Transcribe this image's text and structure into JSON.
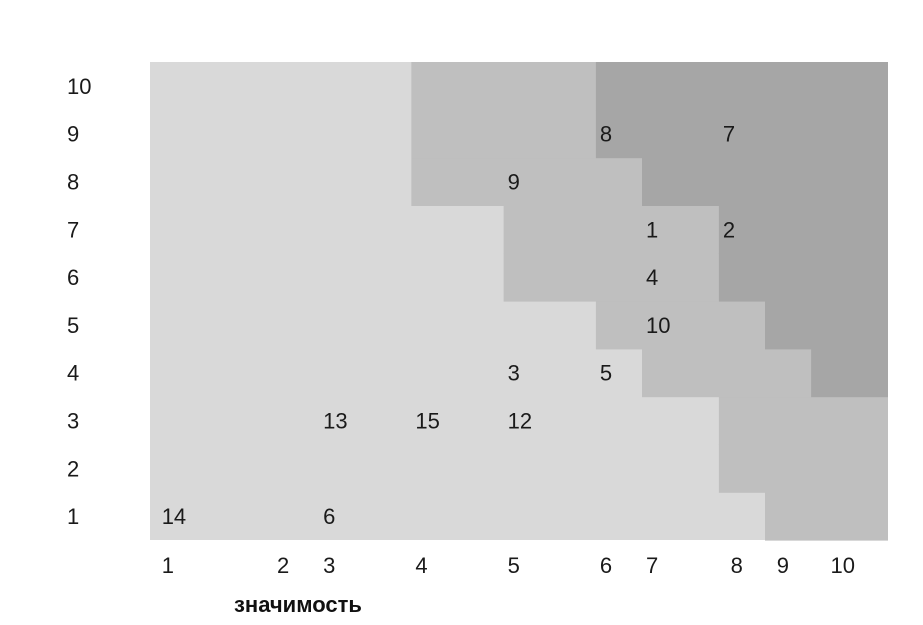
{
  "chart_data": {
    "type": "heatmap",
    "title": "",
    "xlabel": "значимость",
    "ylabel": "",
    "x_ticks": [
      {
        "label": "1",
        "value": 1.1
      },
      {
        "label": "2",
        "value": 2.6
      },
      {
        "label": "3",
        "value": 3.2
      },
      {
        "label": "4",
        "value": 4.4
      },
      {
        "label": "5",
        "value": 5.6
      },
      {
        "label": "6",
        "value": 6.8
      },
      {
        "label": "7",
        "value": 7.4
      },
      {
        "label": "8",
        "value": 8.5
      },
      {
        "label": "9",
        "value": 9.1
      },
      {
        "label": "10",
        "value": 9.8
      }
    ],
    "y_ticks": [
      "1",
      "2",
      "3",
      "4",
      "5",
      "6",
      "7",
      "8",
      "9",
      "10"
    ],
    "xlim": [
      1,
      10.6
    ],
    "ylim": [
      0.5,
      10.5
    ],
    "zones": [
      {
        "level": 1,
        "color": "#d9d9d9",
        "x_from": 1
      },
      {
        "level": 2,
        "color": "#bfbfbf",
        "x_from_by_row": {
          "1": 9.0,
          "2": 8.4,
          "3": 8.4,
          "4": 7.4,
          "5": 6.8,
          "6": 5.6,
          "7": 5.6,
          "8": 4.4,
          "9": 4.4,
          "10": 4.4
        }
      },
      {
        "level": 3,
        "color": "#a6a6a6",
        "x_from_by_row": {
          "4": 9.6,
          "5": 9.0,
          "6": 8.4,
          "7": 8.4,
          "8": 7.4,
          "9": 6.8,
          "10": 6.8
        }
      }
    ],
    "points": [
      {
        "label": "14",
        "x": 1.1,
        "y": 1
      },
      {
        "label": "6",
        "x": 3.2,
        "y": 1
      },
      {
        "label": "13",
        "x": 3.2,
        "y": 3
      },
      {
        "label": "15",
        "x": 4.4,
        "y": 3
      },
      {
        "label": "12",
        "x": 5.6,
        "y": 3
      },
      {
        "label": "3",
        "x": 5.6,
        "y": 4
      },
      {
        "label": "5",
        "x": 6.8,
        "y": 4
      },
      {
        "label": "10",
        "x": 7.4,
        "y": 5
      },
      {
        "label": "4",
        "x": 7.4,
        "y": 6
      },
      {
        "label": "1",
        "x": 7.4,
        "y": 7
      },
      {
        "label": "2",
        "x": 8.4,
        "y": 7
      },
      {
        "label": "9",
        "x": 5.6,
        "y": 8
      },
      {
        "label": "8",
        "x": 6.8,
        "y": 9
      },
      {
        "label": "7",
        "x": 8.4,
        "y": 9
      }
    ],
    "grid": false,
    "legend": "none"
  }
}
